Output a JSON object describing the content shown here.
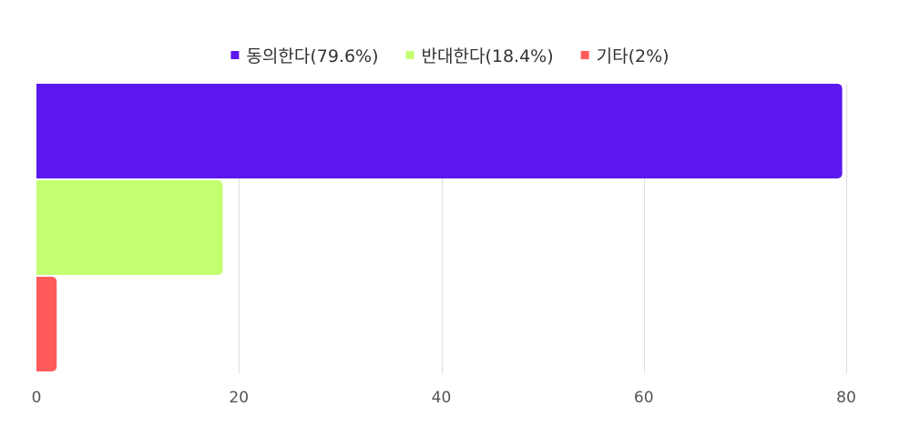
{
  "chart_data": {
    "type": "bar",
    "orientation": "horizontal",
    "series": [
      {
        "name": "동의한다(79.6%)",
        "value": 79.6,
        "color": "#5b17ed"
      },
      {
        "name": "반대한다(18.4%)",
        "value": 18.4,
        "color": "#c4ff72"
      },
      {
        "name": "기타(2%)",
        "value": 2,
        "color": "#ff5a5a"
      }
    ],
    "xlim": [
      0,
      80
    ],
    "xticks": [
      "0",
      "20",
      "40",
      "60",
      "80"
    ],
    "grid": true,
    "legend_position": "top"
  }
}
